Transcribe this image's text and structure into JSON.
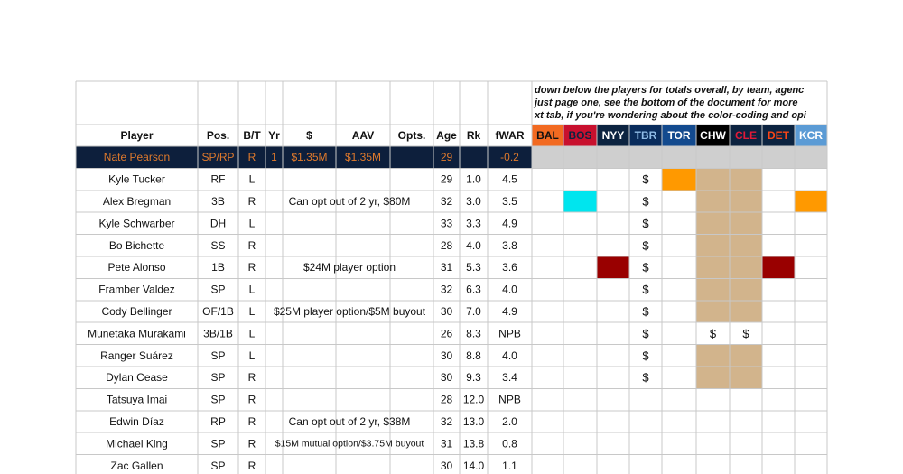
{
  "note_lines": [
    "down below the players for totals overall, by team, agenc",
    "just page one, see the bottom of the document for more",
    "xt tab, if you're wondering about the color-coding and opi"
  ],
  "headers": [
    "Player",
    "Pos.",
    "B/T",
    "Yr",
    "$",
    "AAV",
    "Opts.",
    "Age",
    "Rk",
    "fWAR"
  ],
  "teams": [
    {
      "label": "BAL",
      "bg": "#f26a21",
      "fg": "#111111"
    },
    {
      "label": "BOS",
      "bg": "#c8102e",
      "fg": "#0c2340"
    },
    {
      "label": "NYY",
      "bg": "#0c2340",
      "fg": "#ffffff"
    },
    {
      "label": "TBR",
      "bg": "#092c5c",
      "fg": "#8fbce6"
    },
    {
      "label": "TOR",
      "bg": "#134a8e",
      "fg": "#ffffff"
    },
    {
      "label": "CHW",
      "bg": "#000000",
      "fg": "#ffffff"
    },
    {
      "label": "CLE",
      "bg": "#0c2340",
      "fg": "#e31937"
    },
    {
      "label": "DET",
      "bg": "#0c2340",
      "fg": "#fa4616"
    },
    {
      "label": "KCR",
      "bg": "#5b9bd5",
      "fg": "#ffffff"
    }
  ],
  "selected_row": {
    "player": "Nate Pearson",
    "pos": "SP/RP",
    "bt": "R",
    "yr": "1",
    "dollars": "$1.35M",
    "aav": "$1.35M",
    "opts": "",
    "age": "29",
    "rk": "",
    "fwar": "-0.2"
  },
  "rows": [
    {
      "player": "Kyle Tucker",
      "pos": "RF",
      "bt": "L",
      "note": "",
      "age": "29",
      "rk": "1.0",
      "fwar": "4.5",
      "cells": [
        "",
        "",
        "",
        "$",
        "#ff9900",
        "#d2b48c",
        "#d2b48c",
        "",
        ""
      ]
    },
    {
      "player": "Alex Bregman",
      "pos": "3B",
      "bt": "R",
      "note": "Can opt out of 2 yr, $80M",
      "age": "32",
      "rk": "3.0",
      "fwar": "3.5",
      "cells": [
        "",
        "#00e5ee",
        "",
        "$",
        "",
        "#d2b48c",
        "#d2b48c",
        "",
        "#ff9900"
      ]
    },
    {
      "player": "Kyle Schwarber",
      "pos": "DH",
      "bt": "L",
      "note": "",
      "age": "33",
      "rk": "3.3",
      "fwar": "4.9",
      "cells": [
        "",
        "",
        "",
        "$",
        "",
        "#d2b48c",
        "#d2b48c",
        "",
        ""
      ]
    },
    {
      "player": "Bo Bichette",
      "pos": "SS",
      "bt": "R",
      "note": "",
      "age": "28",
      "rk": "4.0",
      "fwar": "3.8",
      "cells": [
        "",
        "",
        "",
        "$",
        "",
        "#d2b48c",
        "#d2b48c",
        "",
        ""
      ]
    },
    {
      "player": "Pete Alonso",
      "pos": "1B",
      "bt": "R",
      "note": "$24M player option",
      "age": "31",
      "rk": "5.3",
      "fwar": "3.6",
      "cells": [
        "",
        "",
        "#990000",
        "$",
        "",
        "#d2b48c",
        "#d2b48c",
        "#990000",
        ""
      ]
    },
    {
      "player": "Framber Valdez",
      "pos": "SP",
      "bt": "L",
      "note": "",
      "age": "32",
      "rk": "6.3",
      "fwar": "4.0",
      "cells": [
        "",
        "",
        "",
        "$",
        "",
        "#d2b48c",
        "#d2b48c",
        "",
        ""
      ]
    },
    {
      "player": "Cody Bellinger",
      "pos": "OF/1B",
      "bt": "L",
      "note": "$25M player option/$5M buyout",
      "age": "30",
      "rk": "7.0",
      "fwar": "4.9",
      "cells": [
        "",
        "",
        "",
        "$",
        "",
        "#d2b48c",
        "#d2b48c",
        "",
        ""
      ]
    },
    {
      "player": "Munetaka Murakami",
      "pos": "3B/1B",
      "bt": "L",
      "note": "",
      "age": "26",
      "rk": "8.3",
      "fwar": "NPB",
      "cells": [
        "",
        "",
        "",
        "$",
        "",
        "$",
        "$",
        "",
        ""
      ]
    },
    {
      "player": "Ranger Suárez",
      "pos": "SP",
      "bt": "L",
      "note": "",
      "age": "30",
      "rk": "8.8",
      "fwar": "4.0",
      "cells": [
        "",
        "",
        "",
        "$",
        "",
        "#d2b48c",
        "#d2b48c",
        "",
        ""
      ]
    },
    {
      "player": "Dylan Cease",
      "pos": "SP",
      "bt": "R",
      "note": "",
      "age": "30",
      "rk": "9.3",
      "fwar": "3.4",
      "cells": [
        "",
        "",
        "",
        "$",
        "",
        "#d2b48c",
        "#d2b48c",
        "",
        ""
      ]
    },
    {
      "player": "Tatsuya Imai",
      "pos": "SP",
      "bt": "R",
      "note": "",
      "age": "28",
      "rk": "12.0",
      "fwar": "NPB",
      "cells": [
        "",
        "",
        "",
        "",
        "",
        "",
        "",
        "",
        ""
      ]
    },
    {
      "player": "Edwin Díaz",
      "pos": "RP",
      "bt": "R",
      "note": "Can opt out of 2 yr, $38M",
      "age": "32",
      "rk": "13.0",
      "fwar": "2.0",
      "cells": [
        "",
        "",
        "",
        "",
        "",
        "",
        "",
        "",
        ""
      ]
    },
    {
      "player": "Michael King",
      "pos": "SP",
      "bt": "R",
      "note": "$15M mutual option/$3.75M buyout",
      "note_small": true,
      "age": "31",
      "rk": "13.8",
      "fwar": "0.8",
      "cells": [
        "",
        "",
        "",
        "",
        "",
        "",
        "",
        "",
        ""
      ]
    },
    {
      "player": "Zac Gallen",
      "pos": "SP",
      "bt": "R",
      "note": "",
      "age": "30",
      "rk": "14.0",
      "fwar": "1.1",
      "cells": [
        "",
        "",
        "",
        "",
        "",
        "",
        "",
        "",
        ""
      ]
    }
  ]
}
